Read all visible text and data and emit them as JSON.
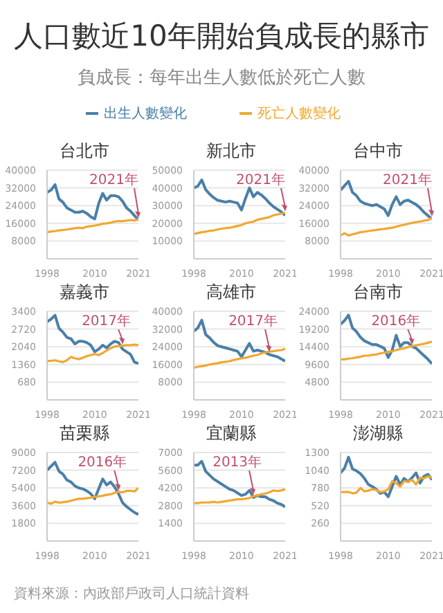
{
  "chart_data": [
    {
      "type": "other",
      "title": "人口數近10年開始負成長的縣市",
      "subtitle": "負成長：每年出生人數低於死亡人數",
      "annotations": [
        "資料來源：內政部戶政司人口統計資料"
      ]
    },
    {
      "type": "line",
      "title": "台北市",
      "xlim": [
        1998,
        2021
      ],
      "x": [
        1998,
        1999,
        2000,
        2001,
        2002,
        2003,
        2004,
        2005,
        2006,
        2007,
        2008,
        2009,
        2010,
        2011,
        2012,
        2013,
        2014,
        2015,
        2016,
        2017,
        2018,
        2019,
        2020,
        2021
      ],
      "ylim": [
        0,
        40000
      ],
      "yticks": [
        8000,
        16000,
        24000,
        32000,
        40000
      ],
      "xticks": [
        1998,
        2010,
        2021
      ],
      "grid": "y",
      "legend": "top",
      "annotations": [
        {
          "text": "2021年",
          "x": 2021,
          "y": 17800
        }
      ],
      "series": [
        {
          "name": "出生人數變化",
          "color": "#4a7fa8",
          "values": [
            30000,
            31000,
            33500,
            27000,
            25500,
            23000,
            22000,
            21000,
            21000,
            21500,
            20500,
            19000,
            18000,
            25000,
            29500,
            26500,
            28500,
            28500,
            28000,
            26000,
            23000,
            21500,
            19500,
            17500
          ]
        },
        {
          "name": "死亡人數變化",
          "color": "#f0a830",
          "values": [
            12000,
            12300,
            12500,
            12800,
            13000,
            13200,
            13500,
            13800,
            14000,
            13800,
            14500,
            14700,
            15000,
            15300,
            15800,
            16000,
            16300,
            16800,
            17000,
            17000,
            17200,
            17500,
            17300,
            17800
          ]
        }
      ]
    },
    {
      "type": "line",
      "title": "新北市",
      "xlim": [
        1998,
        2021
      ],
      "x": [
        1998,
        1999,
        2000,
        2001,
        2002,
        2003,
        2004,
        2005,
        2006,
        2007,
        2008,
        2009,
        2010,
        2011,
        2012,
        2013,
        2014,
        2015,
        2016,
        2017,
        2018,
        2019,
        2020,
        2021
      ],
      "ylim": [
        0,
        50000
      ],
      "yticks": [
        10000,
        20000,
        30000,
        40000,
        50000
      ],
      "xticks": [
        1998,
        2010,
        2021
      ],
      "grid": "y",
      "annotations": [
        {
          "text": "2021年",
          "x": 2021,
          "y": 26000
        }
      ],
      "series": [
        {
          "color": "#4a7fa8",
          "values": [
            40000,
            41000,
            44500,
            39000,
            36500,
            34500,
            33000,
            32500,
            32000,
            32500,
            32000,
            31500,
            27500,
            34000,
            40000,
            35000,
            37500,
            36000,
            34000,
            31500,
            29500,
            28000,
            26500,
            24500
          ]
        },
        {
          "color": "#f0a830",
          "values": [
            14000,
            14500,
            15000,
            15300,
            15800,
            16000,
            16500,
            17000,
            17300,
            17500,
            18000,
            18500,
            19000,
            20000,
            20500,
            21000,
            22000,
            22500,
            23000,
            23500,
            24500,
            25000,
            25500,
            26000
          ]
        }
      ]
    },
    {
      "type": "line",
      "title": "台中市",
      "xlim": [
        1998,
        2021
      ],
      "x": [
        1998,
        1999,
        2000,
        2001,
        2002,
        2003,
        2004,
        2005,
        2006,
        2007,
        2008,
        2009,
        2010,
        2011,
        2012,
        2013,
        2014,
        2015,
        2016,
        2017,
        2018,
        2019,
        2020,
        2021
      ],
      "ylim": [
        0,
        40000
      ],
      "yticks": [
        8000,
        16000,
        24000,
        32000,
        40000
      ],
      "xticks": [
        1998,
        2010,
        2021
      ],
      "grid": "y",
      "annotations": [
        {
          "text": "2021年",
          "x": 2021,
          "y": 18500
        }
      ],
      "series": [
        {
          "color": "#4a7fa8",
          "values": [
            31000,
            33000,
            35000,
            30000,
            28500,
            26000,
            25000,
            24500,
            24000,
            24500,
            23500,
            22500,
            19500,
            24500,
            28000,
            24500,
            26000,
            26500,
            25500,
            24500,
            23000,
            21000,
            19500,
            18000
          ]
        },
        {
          "color": "#f0a830",
          "values": [
            10500,
            11500,
            10500,
            11000,
            11500,
            12000,
            12200,
            12500,
            12800,
            13000,
            13300,
            13500,
            13800,
            14000,
            14500,
            15000,
            15300,
            15800,
            16200,
            16500,
            16800,
            17200,
            17500,
            18500
          ]
        }
      ]
    },
    {
      "type": "line",
      "title": "嘉義市",
      "xlim": [
        1998,
        2021
      ],
      "x": [
        1998,
        1999,
        2000,
        2001,
        2002,
        2003,
        2004,
        2005,
        2006,
        2007,
        2008,
        2009,
        2010,
        2011,
        2012,
        2013,
        2014,
        2015,
        2016,
        2017,
        2018,
        2019,
        2020,
        2021
      ],
      "ylim": [
        0,
        3400
      ],
      "yticks": [
        680,
        1360,
        2040,
        2720,
        3400
      ],
      "xticks": [
        1998,
        2010,
        2021
      ],
      "grid": "y",
      "annotations": [
        {
          "text": "2017年",
          "x": 2017,
          "y": 2080
        }
      ],
      "series": [
        {
          "color": "#4a7fa8",
          "values": [
            3000,
            3100,
            3250,
            2750,
            2600,
            2400,
            2350,
            2150,
            2250,
            2250,
            2200,
            2100,
            1850,
            1950,
            2100,
            2000,
            2150,
            2250,
            2200,
            1950,
            1850,
            1750,
            1450,
            1400
          ]
        },
        {
          "color": "#f0a830",
          "values": [
            1500,
            1500,
            1520,
            1480,
            1450,
            1520,
            1650,
            1600,
            1560,
            1620,
            1680,
            1720,
            1760,
            1720,
            1800,
            1900,
            1980,
            2050,
            2060,
            2080,
            2100,
            2100,
            2120,
            2100
          ]
        }
      ]
    },
    {
      "type": "line",
      "title": "高雄市",
      "xlim": [
        1998,
        2021
      ],
      "x": [
        1998,
        1999,
        2000,
        2001,
        2002,
        2003,
        2004,
        2005,
        2006,
        2007,
        2008,
        2009,
        2010,
        2011,
        2012,
        2013,
        2014,
        2015,
        2016,
        2017,
        2018,
        2019,
        2020,
        2021
      ],
      "ylim": [
        0,
        40000
      ],
      "yticks": [
        8000,
        16000,
        24000,
        32000,
        40000
      ],
      "xticks": [
        1998,
        2010,
        2021
      ],
      "grid": "y",
      "annotations": [
        {
          "text": "2017年",
          "x": 2017,
          "y": 21000
        }
      ],
      "series": [
        {
          "color": "#4a7fa8",
          "values": [
            31000,
            32500,
            36000,
            29500,
            28000,
            26000,
            24500,
            24000,
            23500,
            23000,
            22500,
            22000,
            19500,
            22500,
            25500,
            22000,
            22500,
            22000,
            21500,
            20500,
            20000,
            19500,
            18500,
            17500
          ]
        },
        {
          "color": "#f0a830",
          "values": [
            14500,
            15000,
            15200,
            15500,
            16000,
            16300,
            16600,
            17000,
            17200,
            17500,
            18000,
            18400,
            18800,
            19000,
            19500,
            20000,
            20300,
            21000,
            21500,
            21800,
            22000,
            22300,
            22500,
            23000
          ]
        }
      ]
    },
    {
      "type": "line",
      "title": "台南市",
      "xlim": [
        1998,
        2021
      ],
      "x": [
        1998,
        1999,
        2000,
        2001,
        2002,
        2003,
        2004,
        2005,
        2006,
        2007,
        2008,
        2009,
        2010,
        2011,
        2012,
        2013,
        2014,
        2015,
        2016,
        2017,
        2018,
        2019,
        2020,
        2021
      ],
      "ylim": [
        0,
        24000
      ],
      "yticks": [
        4800,
        9600,
        14400,
        19200,
        24000
      ],
      "xticks": [
        1998,
        2010,
        2021
      ],
      "grid": "y",
      "annotations": [
        {
          "text": "2016年",
          "x": 2016,
          "y": 14600
        }
      ],
      "series": [
        {
          "color": "#4a7fa8",
          "values": [
            20500,
            21500,
            23000,
            19500,
            18500,
            17000,
            16000,
            15500,
            15000,
            15000,
            14500,
            14000,
            11500,
            13500,
            17500,
            14500,
            15500,
            15500,
            14500,
            14000,
            13000,
            12000,
            11000,
            9800
          ]
        },
        {
          "color": "#f0a830",
          "values": [
            11000,
            11000,
            11200,
            11300,
            11500,
            11700,
            12000,
            12000,
            12200,
            12300,
            12600,
            12800,
            13000,
            13200,
            13500,
            13800,
            14000,
            14300,
            14600,
            14800,
            15000,
            15200,
            15500,
            15800
          ]
        }
      ]
    },
    {
      "type": "line",
      "title": "苗栗縣",
      "xlim": [
        1998,
        2021
      ],
      "x": [
        1998,
        1999,
        2000,
        2001,
        2002,
        2003,
        2004,
        2005,
        2006,
        2007,
        2008,
        2009,
        2010,
        2011,
        2012,
        2013,
        2014,
        2015,
        2016,
        2017,
        2018,
        2019,
        2020,
        2021
      ],
      "ylim": [
        0,
        9000
      ],
      "yticks": [
        1800,
        3600,
        5400,
        7200,
        9000
      ],
      "xticks": [
        1998,
        2010,
        2021
      ],
      "grid": "y",
      "annotations": [
        {
          "text": "2016年",
          "x": 2016,
          "y": 5000
        }
      ],
      "series": [
        {
          "color": "#4a7fa8",
          "values": [
            7200,
            7600,
            8000,
            7100,
            6800,
            6200,
            6000,
            5600,
            5400,
            5300,
            5100,
            4800,
            4300,
            5300,
            6300,
            5700,
            6000,
            5500,
            4800,
            3900,
            3500,
            3200,
            2900,
            2700
          ]
        },
        {
          "color": "#f0a830",
          "values": [
            3900,
            3800,
            4000,
            3900,
            3950,
            4000,
            4100,
            4200,
            4300,
            4300,
            4350,
            4400,
            4500,
            4550,
            4600,
            4700,
            4750,
            4900,
            5000,
            4950,
            5100,
            5100,
            5050,
            5400
          ]
        }
      ]
    },
    {
      "type": "line",
      "title": "宜蘭縣",
      "xlim": [
        1998,
        2021
      ],
      "x": [
        1998,
        1999,
        2000,
        2001,
        2002,
        2003,
        2004,
        2005,
        2006,
        2007,
        2008,
        2009,
        2010,
        2011,
        2012,
        2013,
        2014,
        2015,
        2016,
        2017,
        2018,
        2019,
        2020,
        2021
      ],
      "ylim": [
        0,
        7000
      ],
      "yticks": [
        1400,
        2800,
        4200,
        5600,
        7000
      ],
      "xticks": [
        1998,
        2010,
        2021
      ],
      "grid": "y",
      "annotations": [
        {
          "text": "2013年",
          "x": 2013,
          "y": 3550
        }
      ],
      "series": [
        {
          "color": "#4a7fa8",
          "values": [
            6000,
            6000,
            6300,
            5500,
            5200,
            4900,
            4700,
            4500,
            4300,
            4100,
            4000,
            3800,
            3600,
            3700,
            4000,
            3450,
            3600,
            3500,
            3500,
            3300,
            3200,
            3000,
            2900,
            2700
          ]
        },
        {
          "color": "#f0a830",
          "values": [
            3000,
            3000,
            3050,
            3050,
            3050,
            3100,
            3050,
            3100,
            3150,
            3200,
            3250,
            3300,
            3300,
            3350,
            3400,
            3550,
            3600,
            3700,
            3750,
            3850,
            4000,
            3950,
            4000,
            4100
          ]
        }
      ]
    },
    {
      "type": "line",
      "title": "澎湖縣",
      "xlim": [
        1998,
        2021
      ],
      "x": [
        1998,
        1999,
        2000,
        2001,
        2002,
        2003,
        2004,
        2005,
        2006,
        2007,
        2008,
        2009,
        2010,
        2011,
        2012,
        2013,
        2014,
        2015,
        2016,
        2017,
        2018,
        2019,
        2020,
        2021
      ],
      "ylim": [
        0,
        1300
      ],
      "yticks": [
        260,
        520,
        780,
        1040,
        1300
      ],
      "xticks": [
        1998,
        2010,
        2021
      ],
      "grid": "y",
      "series": [
        {
          "color": "#4a7fa8",
          "values": [
            1000,
            1070,
            1230,
            1060,
            1030,
            990,
            920,
            830,
            800,
            760,
            700,
            720,
            650,
            800,
            950,
            830,
            920,
            870,
            930,
            1000,
            850,
            950,
            980,
            900
          ]
        },
        {
          "color": "#f0a830",
          "values": [
            720,
            720,
            720,
            700,
            710,
            780,
            730,
            740,
            760,
            750,
            720,
            730,
            760,
            880,
            850,
            800,
            880,
            870,
            900,
            830,
            930,
            920,
            950,
            930
          ]
        }
      ]
    }
  ]
}
